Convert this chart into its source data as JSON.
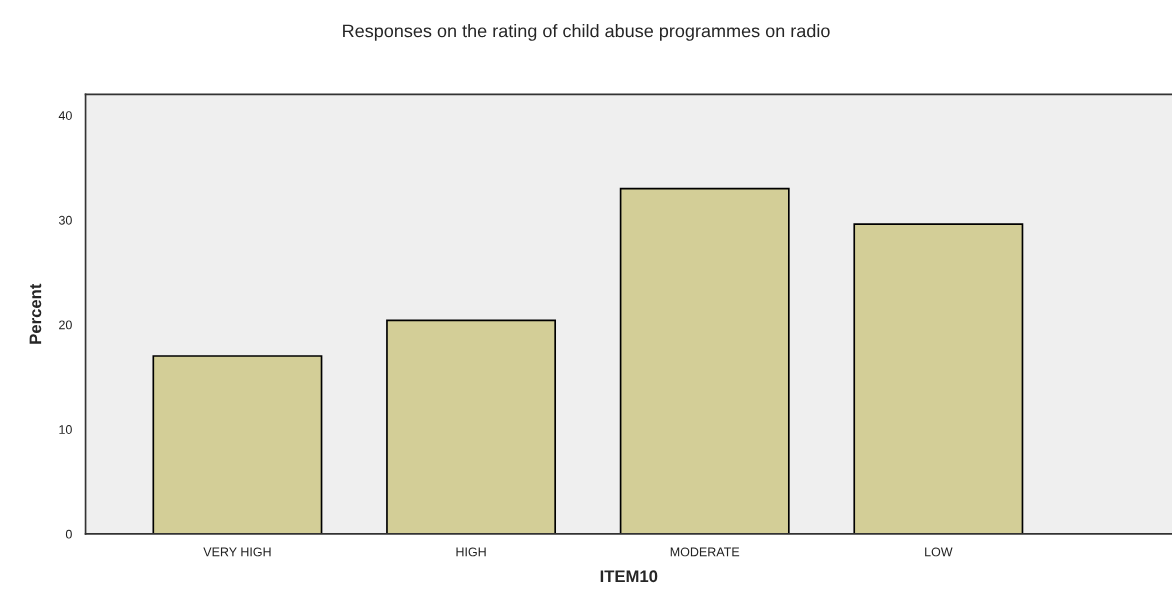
{
  "chart_data": {
    "type": "bar",
    "title": "Responses on the rating of child abuse programmes on radio",
    "xlabel": "ITEM10",
    "ylabel": "Percent",
    "categories": [
      "VERY HIGH",
      "HIGH",
      "MODERATE",
      "LOW"
    ],
    "values": [
      17.0,
      20.4,
      33.0,
      29.6
    ],
    "color": "#d3ce97",
    "ylim": [
      0,
      42
    ],
    "yticks": [
      0,
      10,
      20,
      30,
      40
    ],
    "grid": false,
    "legend": false
  }
}
